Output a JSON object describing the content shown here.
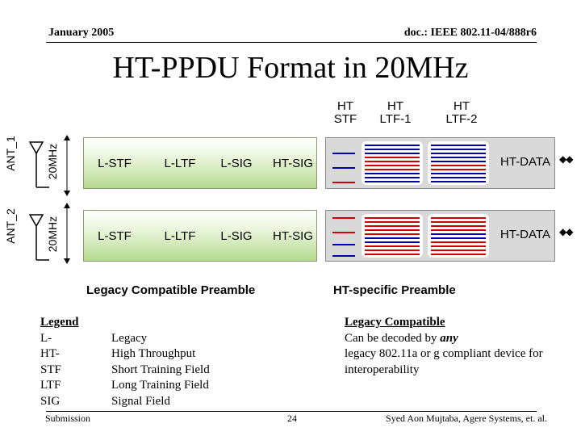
{
  "header": {
    "date": "January 2005",
    "doc_id": "doc.: IEEE 802.11-04/888r6"
  },
  "title": "HT-PPDU Format in 20MHz",
  "column_heads": {
    "ht_stf": [
      "HT",
      "STF"
    ],
    "ht_ltf1": [
      "HT",
      "LTF-1"
    ],
    "ht_ltf2": [
      "HT",
      "LTF-2"
    ]
  },
  "antennas": [
    {
      "ant_label": "ANT_1",
      "bw_label": "20MHz",
      "fields": [
        "L-STF",
        "L-LTF",
        "L-SIG",
        "HT-SIG"
      ],
      "data_label": "HT-DATA"
    },
    {
      "ant_label": "ANT_2",
      "bw_label": "20MHz",
      "fields": [
        "L-STF",
        "L-LTF",
        "L-SIG",
        "HT-SIG"
      ],
      "data_label": "HT-DATA"
    }
  ],
  "captions": {
    "legacy": "Legacy Compatible Preamble",
    "ht": "HT-specific Preamble"
  },
  "legend": {
    "heading": "Legend",
    "terms": [
      "L-",
      "HT-",
      "STF",
      "LTF",
      "SIG"
    ],
    "definitions": [
      "Legacy",
      "High Throughput",
      "Short Training Field",
      "Long Training Field",
      "Signal Field"
    ]
  },
  "legacy_note": {
    "heading": "Legacy Compatible",
    "line1_prefix": "Can be decoded by ",
    "line1_emph": "any",
    "line2": "legacy 802.11a or g compliant device for",
    "line3": "interoperability"
  },
  "footer": {
    "left": "Submission",
    "page": "24",
    "right": "Syed Aon Mujtaba, Agere Systems, et. al."
  },
  "colors": {
    "red_line": "#cc0000",
    "blue_line": "#0000aa"
  }
}
